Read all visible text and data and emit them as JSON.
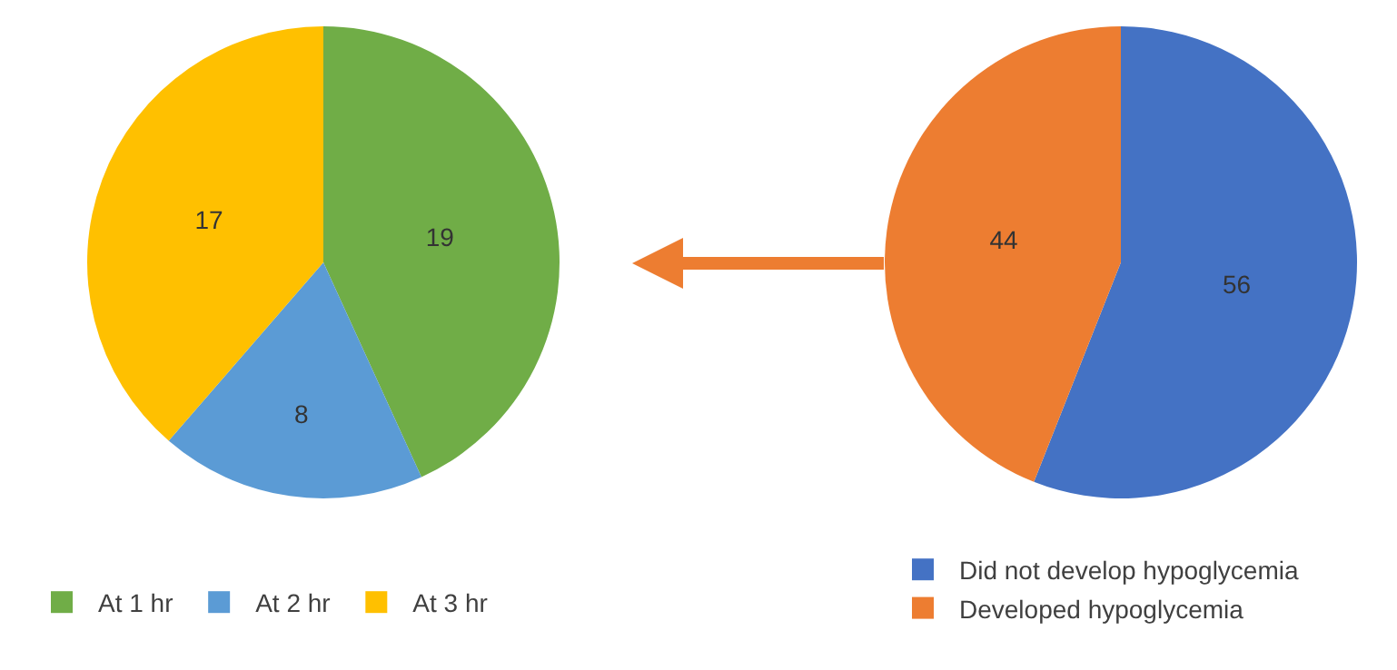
{
  "chart_data": [
    {
      "type": "pie",
      "categories": [
        "At 1 hr",
        "At 2 hr",
        "At 3 hr"
      ],
      "values": [
        19,
        8,
        17
      ],
      "colors": [
        "#70ad47",
        "#5b9bd5",
        "#ffc000"
      ],
      "data_labels": true,
      "legend": "bottom"
    },
    {
      "type": "pie",
      "categories": [
        "Did not develop hypoglycemia",
        "Developed hypoglycemia"
      ],
      "values": [
        56,
        44
      ],
      "colors": [
        "#4472c4",
        "#ed7d31"
      ],
      "data_labels": true,
      "legend": "bottom"
    }
  ]
}
